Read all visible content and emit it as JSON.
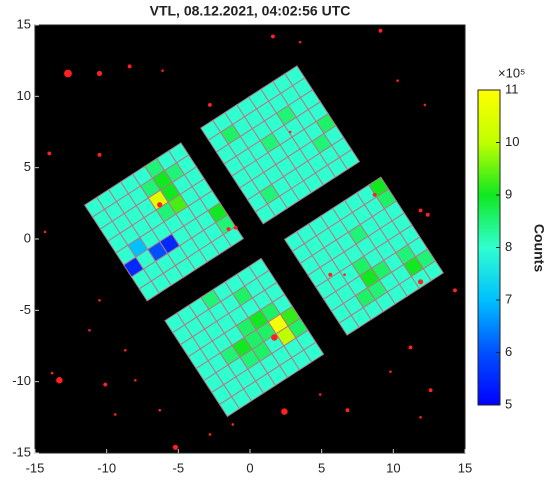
{
  "chart_data": {
    "type": "detector_map",
    "title": "VTL, 08.12.2021, 04:02:56 UTC",
    "xlim": [
      -15,
      15
    ],
    "ylim": [
      -15,
      15
    ],
    "xticks": [
      -15,
      -10,
      -5,
      0,
      5,
      10,
      15
    ],
    "yticks": [
      -15,
      -10,
      -5,
      0,
      5,
      10,
      15
    ],
    "background": "#000000",
    "pixel_edge_color": "#b07a8a",
    "star_color": "#ff2020",
    "clim": [
      5,
      11
    ],
    "cticks": [
      5,
      6,
      7,
      8,
      9,
      10,
      11
    ],
    "colorbar_multiplier": "×10⁵",
    "colorbar_label": "Counts",
    "colormap": [
      "#0000ff",
      "#0050ff",
      "#00c0ff",
      "#30ffd0",
      "#10e820",
      "#c0ff00",
      "#ffff00"
    ],
    "modules": [
      {
        "x": -6,
        "y": 1.2,
        "rotation": 33,
        "values": [
          [
            8,
            8,
            8,
            8,
            8,
            8.5,
            8,
            8
          ],
          [
            8,
            8,
            8,
            8,
            8.5,
            9,
            8.5,
            8
          ],
          [
            8,
            8,
            8,
            8,
            10.5,
            9,
            8,
            8
          ],
          [
            8,
            8,
            8,
            8,
            8.5,
            9.3,
            8,
            8
          ],
          [
            8,
            7,
            8,
            8,
            8,
            8,
            8,
            8
          ],
          [
            5.5,
            8,
            6,
            5.5,
            8,
            8,
            8,
            9
          ],
          [
            8,
            8,
            8,
            8,
            8,
            8,
            8,
            8.5
          ],
          [
            8,
            8,
            8,
            8,
            8,
            8,
            8,
            8
          ]
        ]
      },
      {
        "x": 2.1,
        "y": 6.6,
        "rotation": 33,
        "values": [
          [
            8,
            8,
            8,
            8,
            8,
            8,
            8,
            8
          ],
          [
            8,
            8.6,
            8,
            8,
            8,
            8,
            8,
            8
          ],
          [
            8,
            8,
            8,
            8,
            8,
            8.5,
            8,
            8
          ],
          [
            8,
            8,
            8,
            8.5,
            8,
            8,
            8,
            8
          ],
          [
            8,
            8,
            8,
            8,
            8,
            8,
            8,
            8.6
          ],
          [
            8,
            8,
            8,
            8,
            8,
            8,
            8.5,
            8
          ],
          [
            8,
            8.5,
            8,
            8,
            8,
            8,
            8,
            8
          ],
          [
            8,
            8,
            8,
            8,
            8,
            8,
            8,
            8
          ]
        ]
      },
      {
        "x": 7.95,
        "y": -1.2,
        "rotation": 33,
        "values": [
          [
            8,
            8,
            8,
            8,
            8,
            8,
            8,
            9
          ],
          [
            8,
            8,
            8,
            8,
            8,
            8,
            8,
            8.6
          ],
          [
            8,
            8,
            8,
            8,
            8.5,
            8,
            8,
            8
          ],
          [
            8,
            8,
            8,
            8,
            8,
            8,
            8,
            8
          ],
          [
            8,
            8,
            8,
            8.6,
            8,
            8,
            8,
            8
          ],
          [
            8,
            8,
            8,
            9,
            8.6,
            8,
            8.5,
            8
          ],
          [
            8,
            8,
            8.6,
            8.5,
            8,
            8,
            9,
            8.5
          ],
          [
            8,
            8,
            8,
            8,
            8,
            8,
            8,
            8
          ]
        ]
      },
      {
        "x": -0.4,
        "y": -6.9,
        "rotation": 33,
        "values": [
          [
            8,
            8,
            8,
            8.5,
            8,
            8,
            8,
            8
          ],
          [
            8,
            8,
            8,
            8,
            8,
            8.6,
            8,
            8
          ],
          [
            8,
            8,
            8,
            8,
            8,
            8,
            8,
            8
          ],
          [
            8,
            8,
            8,
            8,
            8.6,
            9,
            8.6,
            8
          ],
          [
            8,
            8,
            8.5,
            9,
            8.6,
            8.6,
            10.8,
            9.2
          ],
          [
            8,
            8,
            8,
            8.5,
            8.6,
            8,
            10,
            8.6
          ],
          [
            8,
            8,
            8,
            8,
            8,
            8,
            8,
            8
          ],
          [
            8,
            8,
            8,
            8,
            8,
            8,
            8,
            8
          ]
        ]
      }
    ],
    "stars": {
      "x": [
        -12.7,
        -10.5,
        -8.4,
        -6.1,
        -14,
        -10.5,
        -2.8,
        1.6,
        3.5,
        9.1,
        10.3,
        12.2,
        11.9,
        12.4,
        14.3,
        -14.3,
        -13.3,
        -13.8,
        -10.5,
        -11.2,
        -10.1,
        -8.7,
        -8.0,
        -9.4,
        -5.2,
        -6.3,
        -2.8,
        -1.2,
        2.4,
        4.9,
        6.8,
        11.2,
        9.8,
        12.6,
        11.9,
        1.7,
        -6.3,
        2.8,
        -1.0,
        -1.5,
        5.6,
        6.6,
        8.7,
        11.9
      ],
      "y": [
        11.6,
        11.6,
        12.1,
        11.8,
        6,
        5.9,
        9.4,
        14.2,
        13.8,
        14.6,
        11.1,
        9.4,
        2.0,
        1.7,
        -3.6,
        0.5,
        -9.9,
        -9.4,
        -4.3,
        -6.4,
        -10.2,
        -7.8,
        -9.9,
        -12.3,
        -14.6,
        -12.0,
        -13.7,
        -13.0,
        -12.1,
        -10.9,
        -12.0,
        -7.6,
        -9.3,
        -10.6,
        -12.5,
        -6.9,
        2.4,
        7.5,
        0.8,
        0.7,
        -2.5,
        -2.5,
        3.1,
        -3.0
      ],
      "size": [
        3,
        2,
        1.5,
        1,
        1.5,
        1.5,
        1.5,
        1.5,
        1,
        1.5,
        1,
        1,
        1.5,
        1.5,
        1.5,
        1,
        2.5,
        1,
        1,
        1,
        1.5,
        1,
        1,
        1,
        2,
        1,
        1,
        1,
        2.5,
        1,
        1.5,
        1.5,
        1,
        1.5,
        1,
        2.5,
        2,
        1,
        1.5,
        1.5,
        1.5,
        1,
        1.5,
        2
      ]
    }
  }
}
